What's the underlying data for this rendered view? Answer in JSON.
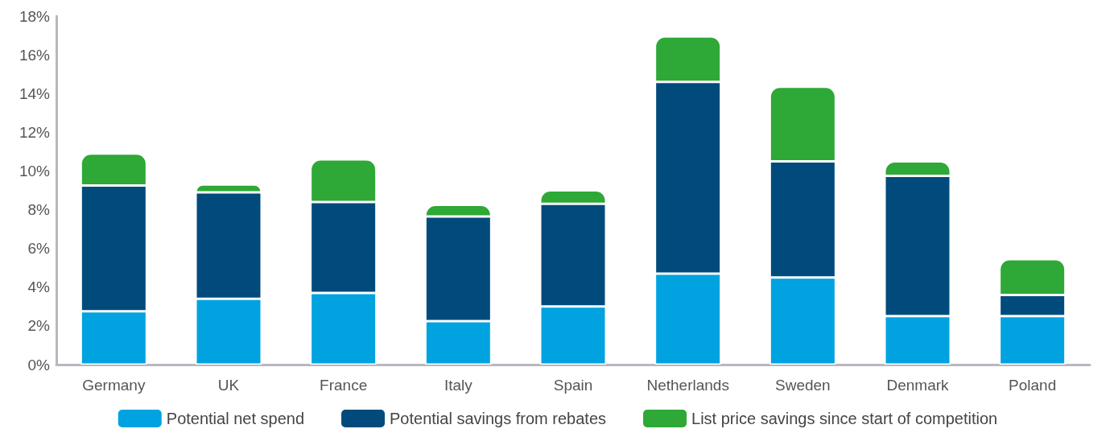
{
  "chart_data": {
    "type": "bar",
    "stacked": true,
    "categories": [
      "Germany",
      "UK",
      "France",
      "Italy",
      "Spain",
      "Netherlands",
      "Sweden",
      "Denmark",
      "Poland"
    ],
    "series": [
      {
        "name": "Potential net spend",
        "color": "#00a3e0",
        "values": [
          2.75,
          3.4,
          3.7,
          2.25,
          3.0,
          4.7,
          4.5,
          2.5,
          2.5
        ]
      },
      {
        "name": "Potential savings from rebates",
        "color": "#004b7c",
        "values": [
          6.5,
          5.5,
          4.7,
          5.4,
          5.3,
          9.9,
          6.0,
          7.25,
          1.1
        ]
      },
      {
        "name": "List price savings since start of competition",
        "color": "#2ea836",
        "values": [
          1.65,
          0.4,
          2.2,
          0.6,
          0.7,
          2.35,
          3.85,
          0.75,
          1.85
        ]
      }
    ],
    "ylim": [
      0,
      18
    ],
    "yticks": [
      {
        "value": 0,
        "label": "0%"
      },
      {
        "value": 2,
        "label": "2%"
      },
      {
        "value": 4,
        "label": "4%"
      },
      {
        "value": 6,
        "label": "6%"
      },
      {
        "value": 8,
        "label": "8%"
      },
      {
        "value": 10,
        "label": "10%"
      },
      {
        "value": 12,
        "label": "12%"
      },
      {
        "value": 14,
        "label": "14%"
      },
      {
        "value": 16,
        "label": "16%"
      },
      {
        "value": 18,
        "label": "18%"
      }
    ],
    "grid": false,
    "legend": "bottom"
  }
}
